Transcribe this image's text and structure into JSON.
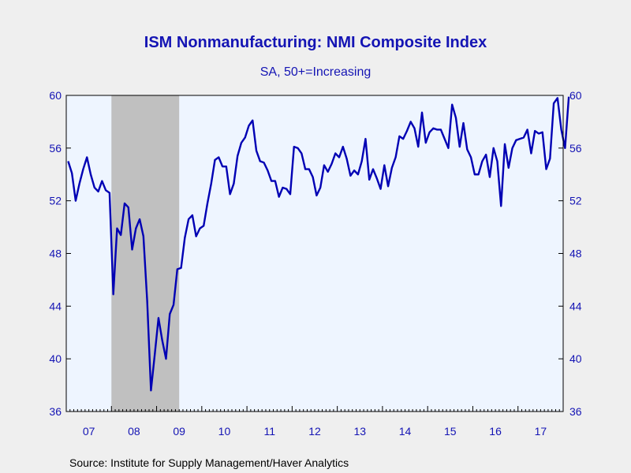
{
  "chart_data": {
    "type": "line",
    "title": "ISM Nonmanufacturing: NMI Composite Index",
    "subtitle": "SA, 50+=Increasing",
    "source": "Source:  Institute for Supply Management/Haver Analytics",
    "ylim": [
      36,
      60
    ],
    "yticks": [
      "36",
      "40",
      "44",
      "48",
      "52",
      "56",
      "60"
    ],
    "xlim": [
      "2007-01",
      "2017-12"
    ],
    "xtick_labels": [
      "07",
      "08",
      "09",
      "10",
      "11",
      "12",
      "13",
      "14",
      "15",
      "16",
      "17"
    ],
    "recession": {
      "start": "2008-01",
      "end": "2009-06"
    },
    "colors": {
      "line": "#0000b4",
      "plot_bg": "#eef5ff",
      "recession": "#c0c0c0",
      "axis": "#000000"
    },
    "series": [
      {
        "x_start": "2007-01",
        "frequency": "monthly",
        "values": [
          55.0,
          54.1,
          52.0,
          53.3,
          54.4,
          55.3,
          54.0,
          53.0,
          52.7,
          53.5,
          52.8,
          52.6,
          44.9,
          49.9,
          49.4,
          51.8,
          51.5,
          48.3,
          49.9,
          50.6,
          49.3,
          44.4,
          37.6,
          40.3,
          43.1,
          41.4,
          40.0,
          43.4,
          44.1,
          46.8,
          46.9,
          49.2,
          50.6,
          50.9,
          49.3,
          49.9,
          50.1,
          51.8,
          53.3,
          55.1,
          55.3,
          54.6,
          54.6,
          52.5,
          53.3,
          55.4,
          56.4,
          56.8,
          57.7,
          58.1,
          55.8,
          55.0,
          54.9,
          54.3,
          53.5,
          53.5,
          52.3,
          53.0,
          52.9,
          52.5,
          56.1,
          56.0,
          55.6,
          54.4,
          54.4,
          53.8,
          52.4,
          53.0,
          54.7,
          54.2,
          54.8,
          55.6,
          55.3,
          56.1,
          55.2,
          53.9,
          54.3,
          54.0,
          55.0,
          56.7,
          53.6,
          54.4,
          53.7,
          52.9,
          54.7,
          53.1,
          54.5,
          55.3,
          56.9,
          56.7,
          57.3,
          58.0,
          57.5,
          56.1,
          58.7,
          56.4,
          57.2,
          57.5,
          57.4,
          57.4,
          56.7,
          56.0,
          59.3,
          58.3,
          56.1,
          57.9,
          55.9,
          55.3,
          54.0,
          54.0,
          55.0,
          55.5,
          53.8,
          56.0,
          55.0,
          51.6,
          56.3,
          54.5,
          56.0,
          56.6,
          56.7,
          56.8,
          57.4,
          55.6,
          57.3,
          57.1,
          57.2,
          54.4,
          55.2,
          59.4,
          59.8,
          57.4,
          56.0,
          59.9
        ]
      }
    ]
  }
}
